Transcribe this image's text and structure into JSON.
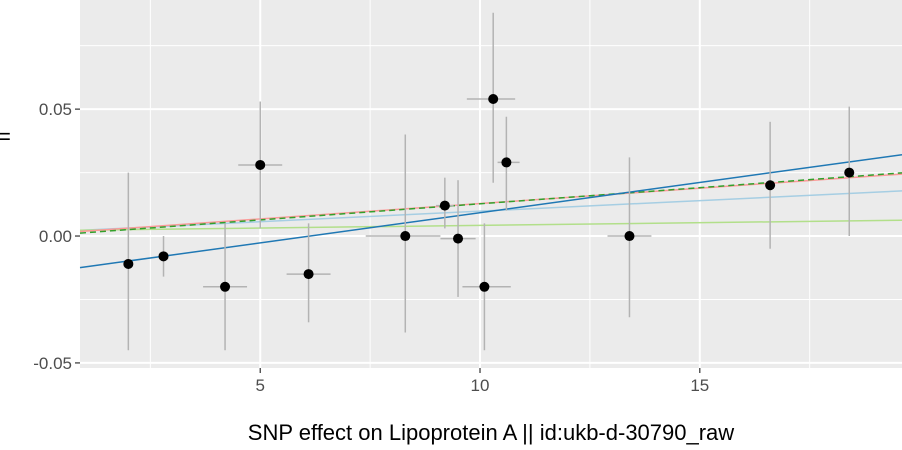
{
  "chart_data": {
    "type": "scatter",
    "title": "",
    "xlabel": "SNP effect on Lipoprotein A || id:ukb-d-30790_raw",
    "ylabel": "",
    "xlim": [
      0.9,
      19.6
    ],
    "ylim": [
      -0.052,
      0.093
    ],
    "x_ticks": [
      5,
      10,
      15
    ],
    "y_ticks": [
      -0.05,
      0.0,
      0.05
    ],
    "x_tick_labels": [
      "5",
      "10",
      "15"
    ],
    "y_tick_labels": [
      "-0.05",
      "0.00",
      "0.05"
    ],
    "grid": true,
    "points": [
      {
        "x": 2.0,
        "y": -0.011,
        "x_lo": 2.0,
        "x_hi": 2.0,
        "y_lo": -0.045,
        "y_hi": 0.025
      },
      {
        "x": 2.8,
        "y": -0.008,
        "x_lo": 2.8,
        "x_hi": 2.8,
        "y_lo": -0.016,
        "y_hi": 0.0
      },
      {
        "x": 4.2,
        "y": -0.02,
        "x_lo": 3.7,
        "x_hi": 4.7,
        "y_lo": -0.045,
        "y_hi": 0.005
      },
      {
        "x": 5.0,
        "y": 0.028,
        "x_lo": 4.5,
        "x_hi": 5.5,
        "y_lo": 0.003,
        "y_hi": 0.053
      },
      {
        "x": 6.1,
        "y": -0.015,
        "x_lo": 5.6,
        "x_hi": 6.6,
        "y_lo": -0.034,
        "y_hi": 0.005
      },
      {
        "x": 8.3,
        "y": 0.0,
        "x_lo": 7.4,
        "x_hi": 9.1,
        "y_lo": -0.038,
        "y_hi": 0.04
      },
      {
        "x": 9.2,
        "y": 0.012,
        "x_lo": 9.0,
        "x_hi": 9.4,
        "y_lo": 0.003,
        "y_hi": 0.023
      },
      {
        "x": 9.5,
        "y": -0.001,
        "x_lo": 9.1,
        "x_hi": 9.9,
        "y_lo": -0.024,
        "y_hi": 0.022
      },
      {
        "x": 10.1,
        "y": -0.02,
        "x_lo": 9.6,
        "x_hi": 10.7,
        "y_lo": -0.045,
        "y_hi": 0.005
      },
      {
        "x": 10.3,
        "y": 0.054,
        "x_lo": 9.7,
        "x_hi": 10.8,
        "y_lo": 0.021,
        "y_hi": 0.088
      },
      {
        "x": 10.6,
        "y": 0.029,
        "x_lo": 10.4,
        "x_hi": 10.9,
        "y_lo": 0.01,
        "y_hi": 0.047
      },
      {
        "x": 13.4,
        "y": 0.0,
        "x_lo": 12.9,
        "x_hi": 13.9,
        "y_lo": -0.032,
        "y_hi": 0.031
      },
      {
        "x": 16.6,
        "y": 0.02,
        "x_lo": 16.6,
        "x_hi": 16.6,
        "y_lo": -0.005,
        "y_hi": 0.045
      },
      {
        "x": 18.4,
        "y": 0.025,
        "x_lo": 18.4,
        "x_hi": 18.4,
        "y_lo": 0.0,
        "y_hi": 0.051
      }
    ],
    "lines": [
      {
        "color": "#a6cee3",
        "intercept": 0.0015,
        "slope": 0.00083
      },
      {
        "color": "#b2df8a",
        "intercept": 0.0021,
        "slope": 0.00021
      },
      {
        "color": "#fb9a99",
        "intercept": 0.0007,
        "slope": 0.00121
      },
      {
        "color": "#33a02c",
        "intercept": 0.0,
        "slope": 0.00127,
        "dash": true
      },
      {
        "color": "#1f78b4",
        "intercept": -0.0146,
        "slope": 0.00238
      }
    ]
  },
  "colors": {
    "panel_background": "#ebebeb",
    "grid_major": "#ffffff",
    "point": "#000000",
    "error_bar": "#b3b3b3"
  }
}
